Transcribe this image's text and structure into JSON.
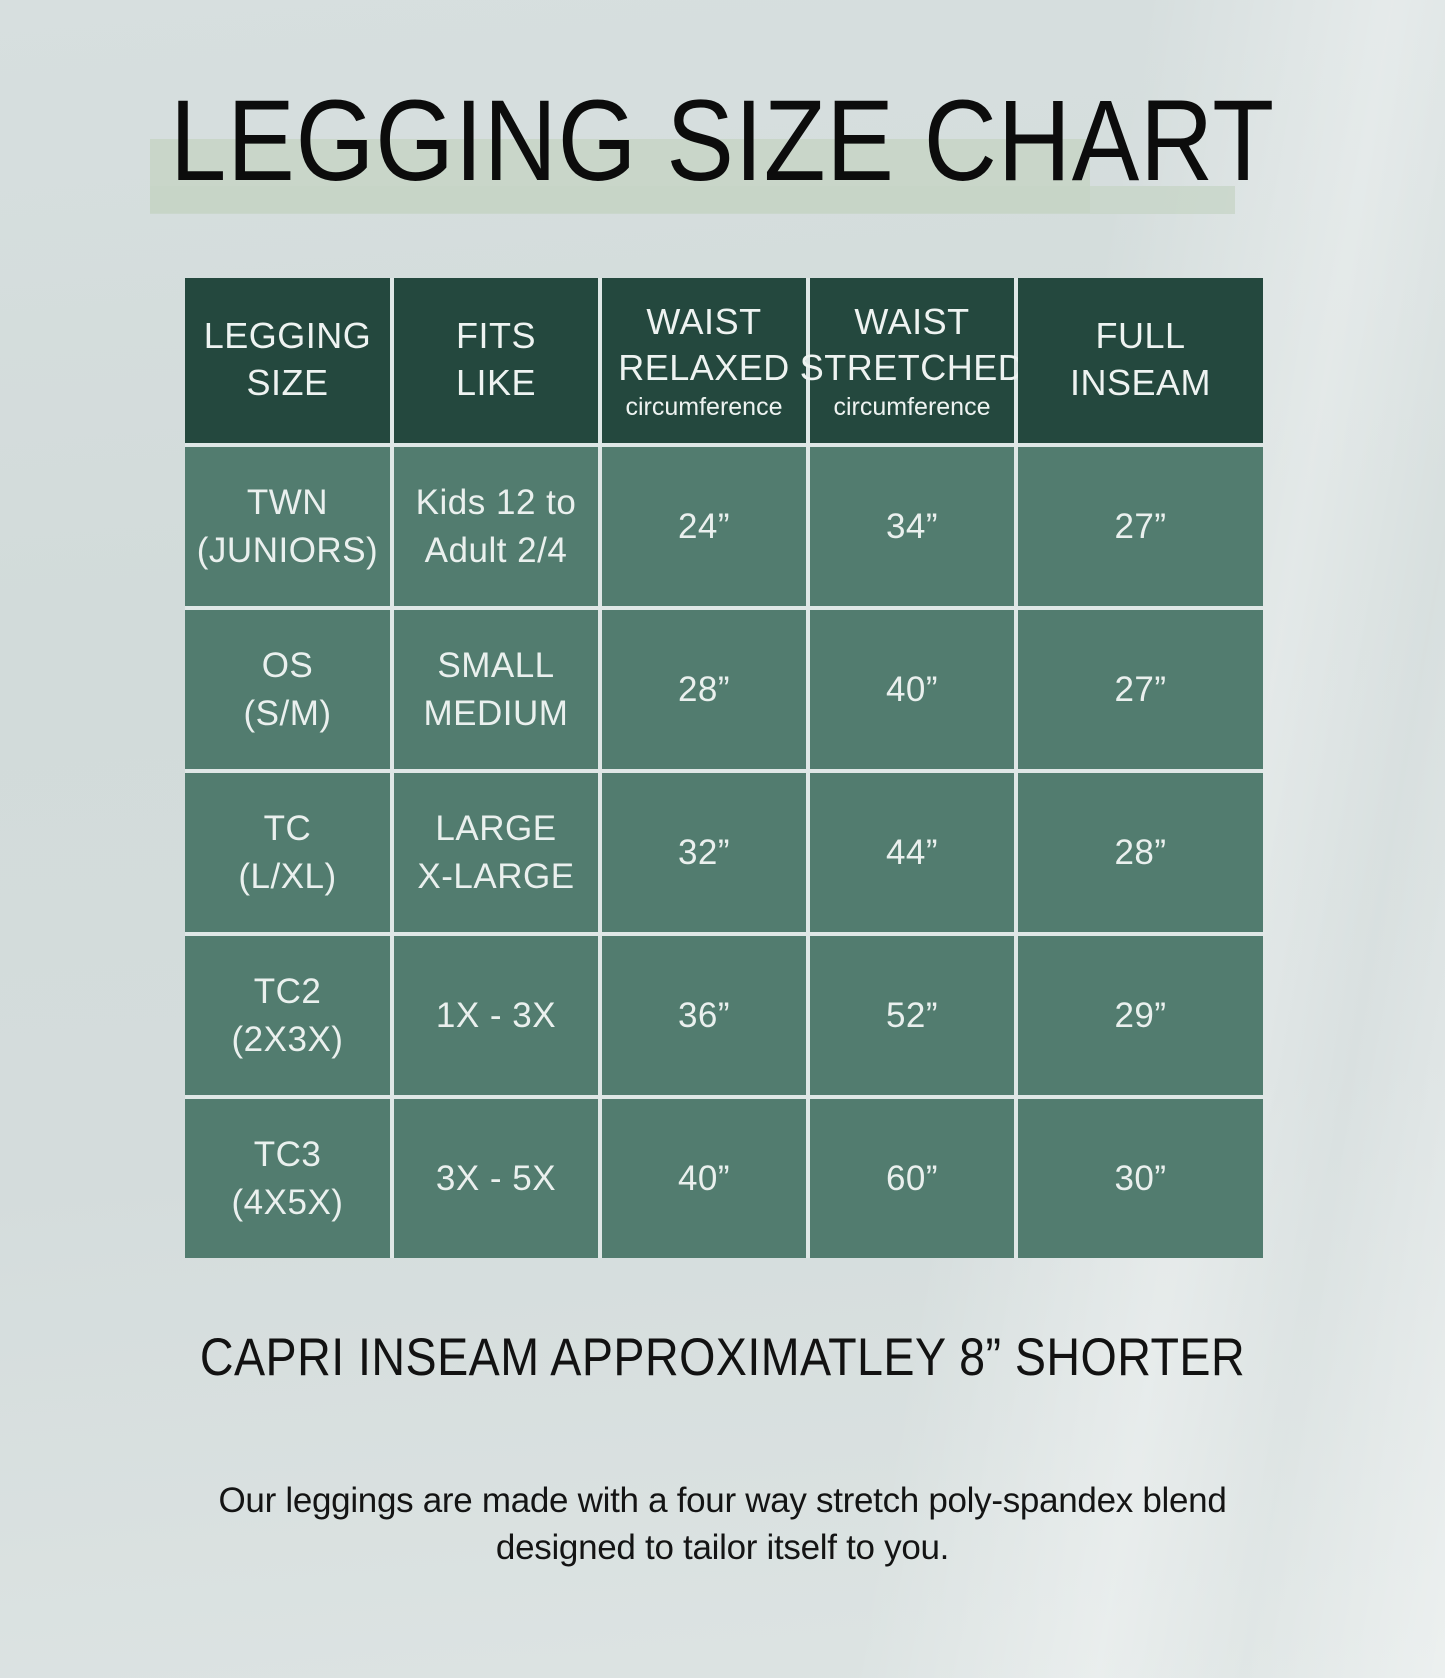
{
  "page": {
    "title": "LEGGING SIZE CHART",
    "capri_note": "CAPRI INSEAM APPROXIMATLEY 8” SHORTER",
    "description_line1": "Our leggings are made with a four way stretch poly-spandex blend",
    "description_line2": "designed to tailor itself to you."
  },
  "colors": {
    "background": "#d4dcdc",
    "title_highlight": "#c9d6c9",
    "header_green": "#24483e",
    "cell_green": "#527c6f",
    "header_text": "#eef3f1",
    "cell_text": "#eaf0ee",
    "text_black": "#111111"
  },
  "chart_data": {
    "type": "table",
    "title": "LEGGING SIZE CHART",
    "columns": [
      {
        "title": "LEGGING\nSIZE",
        "subtitle": ""
      },
      {
        "title": "FITS\nLIKE",
        "subtitle": ""
      },
      {
        "title": "WAIST\nRELAXED",
        "subtitle": "circumference"
      },
      {
        "title": "WAIST\nSTRETCHED",
        "subtitle": "circumference"
      },
      {
        "title": "FULL\nINSEAM",
        "subtitle": ""
      }
    ],
    "rows": [
      {
        "legging_size": "TWN\n(JUNIORS)",
        "fits_like": "Kids 12 to\nAdult 2/4",
        "waist_relaxed": "24”",
        "waist_stretched": "34”",
        "full_inseam": "27”"
      },
      {
        "legging_size": "OS\n(S/M)",
        "fits_like": "SMALL\nMEDIUM",
        "waist_relaxed": "28”",
        "waist_stretched": "40”",
        "full_inseam": "27”"
      },
      {
        "legging_size": "TC\n(L/XL)",
        "fits_like": "LARGE\nX-LARGE",
        "waist_relaxed": "32”",
        "waist_stretched": "44”",
        "full_inseam": "28”"
      },
      {
        "legging_size": "TC2\n(2X3X)",
        "fits_like": "1X - 3X",
        "waist_relaxed": "36”",
        "waist_stretched": "52”",
        "full_inseam": "29”"
      },
      {
        "legging_size": "TC3\n(4X5X)",
        "fits_like": "3X - 5X",
        "waist_relaxed": "40”",
        "waist_stretched": "60”",
        "full_inseam": "30”"
      }
    ]
  }
}
